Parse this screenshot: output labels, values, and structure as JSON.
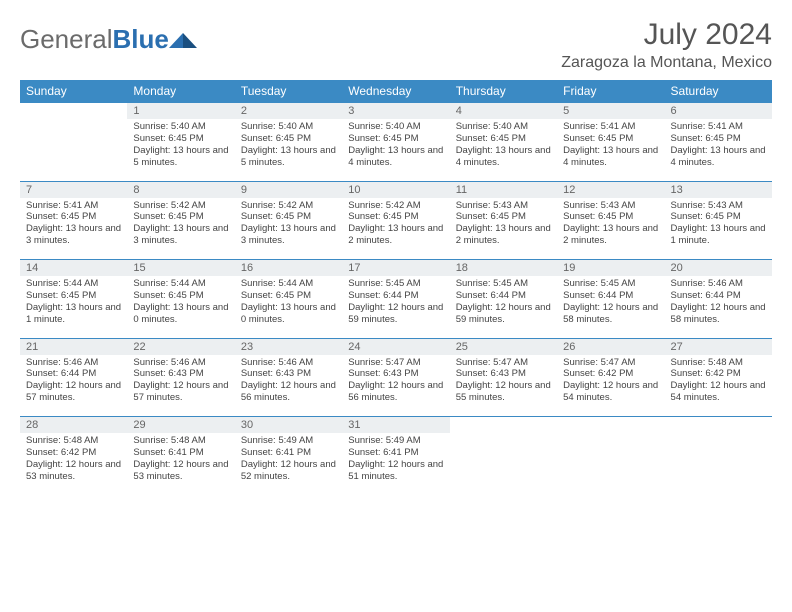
{
  "logo": {
    "text_gray": "General",
    "text_blue": "Blue"
  },
  "title": "July 2024",
  "location": "Zaragoza la Montana, Mexico",
  "colors": {
    "header_bg": "#3b8ac4",
    "header_text": "#ffffff",
    "daynum_bg": "#eceff1",
    "border": "#3b8ac4",
    "body_text": "#444444",
    "title_text": "#555555",
    "logo_gray": "#6b6b6b",
    "logo_blue": "#2b6fb0"
  },
  "daynames": [
    "Sunday",
    "Monday",
    "Tuesday",
    "Wednesday",
    "Thursday",
    "Friday",
    "Saturday"
  ],
  "weeks": [
    {
      "nums": [
        "",
        "1",
        "2",
        "3",
        "4",
        "5",
        "6"
      ],
      "cells": [
        null,
        {
          "sr": "5:40 AM",
          "ss": "6:45 PM",
          "dl": "13 hours and 5 minutes."
        },
        {
          "sr": "5:40 AM",
          "ss": "6:45 PM",
          "dl": "13 hours and 5 minutes."
        },
        {
          "sr": "5:40 AM",
          "ss": "6:45 PM",
          "dl": "13 hours and 4 minutes."
        },
        {
          "sr": "5:40 AM",
          "ss": "6:45 PM",
          "dl": "13 hours and 4 minutes."
        },
        {
          "sr": "5:41 AM",
          "ss": "6:45 PM",
          "dl": "13 hours and 4 minutes."
        },
        {
          "sr": "5:41 AM",
          "ss": "6:45 PM",
          "dl": "13 hours and 4 minutes."
        }
      ]
    },
    {
      "nums": [
        "7",
        "8",
        "9",
        "10",
        "11",
        "12",
        "13"
      ],
      "cells": [
        {
          "sr": "5:41 AM",
          "ss": "6:45 PM",
          "dl": "13 hours and 3 minutes."
        },
        {
          "sr": "5:42 AM",
          "ss": "6:45 PM",
          "dl": "13 hours and 3 minutes."
        },
        {
          "sr": "5:42 AM",
          "ss": "6:45 PM",
          "dl": "13 hours and 3 minutes."
        },
        {
          "sr": "5:42 AM",
          "ss": "6:45 PM",
          "dl": "13 hours and 2 minutes."
        },
        {
          "sr": "5:43 AM",
          "ss": "6:45 PM",
          "dl": "13 hours and 2 minutes."
        },
        {
          "sr": "5:43 AM",
          "ss": "6:45 PM",
          "dl": "13 hours and 2 minutes."
        },
        {
          "sr": "5:43 AM",
          "ss": "6:45 PM",
          "dl": "13 hours and 1 minute."
        }
      ]
    },
    {
      "nums": [
        "14",
        "15",
        "16",
        "17",
        "18",
        "19",
        "20"
      ],
      "cells": [
        {
          "sr": "5:44 AM",
          "ss": "6:45 PM",
          "dl": "13 hours and 1 minute."
        },
        {
          "sr": "5:44 AM",
          "ss": "6:45 PM",
          "dl": "13 hours and 0 minutes."
        },
        {
          "sr": "5:44 AM",
          "ss": "6:45 PM",
          "dl": "13 hours and 0 minutes."
        },
        {
          "sr": "5:45 AM",
          "ss": "6:44 PM",
          "dl": "12 hours and 59 minutes."
        },
        {
          "sr": "5:45 AM",
          "ss": "6:44 PM",
          "dl": "12 hours and 59 minutes."
        },
        {
          "sr": "5:45 AM",
          "ss": "6:44 PM",
          "dl": "12 hours and 58 minutes."
        },
        {
          "sr": "5:46 AM",
          "ss": "6:44 PM",
          "dl": "12 hours and 58 minutes."
        }
      ]
    },
    {
      "nums": [
        "21",
        "22",
        "23",
        "24",
        "25",
        "26",
        "27"
      ],
      "cells": [
        {
          "sr": "5:46 AM",
          "ss": "6:44 PM",
          "dl": "12 hours and 57 minutes."
        },
        {
          "sr": "5:46 AM",
          "ss": "6:43 PM",
          "dl": "12 hours and 57 minutes."
        },
        {
          "sr": "5:46 AM",
          "ss": "6:43 PM",
          "dl": "12 hours and 56 minutes."
        },
        {
          "sr": "5:47 AM",
          "ss": "6:43 PM",
          "dl": "12 hours and 56 minutes."
        },
        {
          "sr": "5:47 AM",
          "ss": "6:43 PM",
          "dl": "12 hours and 55 minutes."
        },
        {
          "sr": "5:47 AM",
          "ss": "6:42 PM",
          "dl": "12 hours and 54 minutes."
        },
        {
          "sr": "5:48 AM",
          "ss": "6:42 PM",
          "dl": "12 hours and 54 minutes."
        }
      ]
    },
    {
      "nums": [
        "28",
        "29",
        "30",
        "31",
        "",
        "",
        ""
      ],
      "cells": [
        {
          "sr": "5:48 AM",
          "ss": "6:42 PM",
          "dl": "12 hours and 53 minutes."
        },
        {
          "sr": "5:48 AM",
          "ss": "6:41 PM",
          "dl": "12 hours and 53 minutes."
        },
        {
          "sr": "5:49 AM",
          "ss": "6:41 PM",
          "dl": "12 hours and 52 minutes."
        },
        {
          "sr": "5:49 AM",
          "ss": "6:41 PM",
          "dl": "12 hours and 51 minutes."
        },
        null,
        null,
        null
      ]
    }
  ],
  "labels": {
    "sunrise": "Sunrise:",
    "sunset": "Sunset:",
    "daylight": "Daylight:"
  }
}
